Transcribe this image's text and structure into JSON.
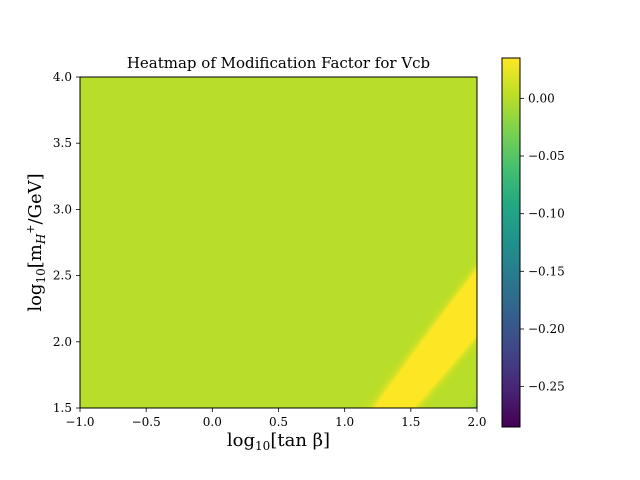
{
  "chart_data": {
    "type": "heatmap",
    "title": "Heatmap of Modification Factor for Vcb",
    "xlabel": {
      "base": "log",
      "sub": "10",
      "body": "[tan β]"
    },
    "ylabel": {
      "base": "log",
      "sub": "10",
      "body": "[m",
      "body_sub": "H",
      "body_sup": "+",
      "body_tail": "/GeV]"
    },
    "x_range": [
      -1.0,
      2.0
    ],
    "y_range": [
      1.5,
      4.0
    ],
    "x_ticks": [
      -1.0,
      -0.5,
      0.0,
      0.5,
      1.0,
      1.5,
      2.0
    ],
    "x_tick_labels": [
      "−1.0",
      "−0.5",
      "0.0",
      "0.5",
      "1.0",
      "1.5",
      "2.0"
    ],
    "y_ticks": [
      1.5,
      2.0,
      2.5,
      3.0,
      3.5,
      4.0
    ],
    "y_tick_labels": [
      "1.5",
      "2.0",
      "2.5",
      "3.0",
      "3.5",
      "4.0"
    ],
    "colorbar": {
      "colormap": "viridis",
      "range": [
        -0.285,
        0.035
      ],
      "ticks": [
        0.0,
        -0.05,
        -0.1,
        -0.15,
        -0.2,
        -0.25
      ],
      "tick_labels": [
        "0.00",
        "−0.05",
        "−0.10",
        "−0.15",
        "−0.20",
        "−0.25"
      ]
    },
    "field_description": {
      "background_value": 0.0,
      "max_value": 0.035,
      "min_value": -0.285,
      "max_ridge": [
        [
          0.9,
          1.5
        ],
        [
          1.5,
          2.0
        ],
        [
          2.0,
          2.4
        ]
      ],
      "min_corner": [
        2.0,
        1.5
      ]
    },
    "grid": false,
    "legend": "none"
  }
}
